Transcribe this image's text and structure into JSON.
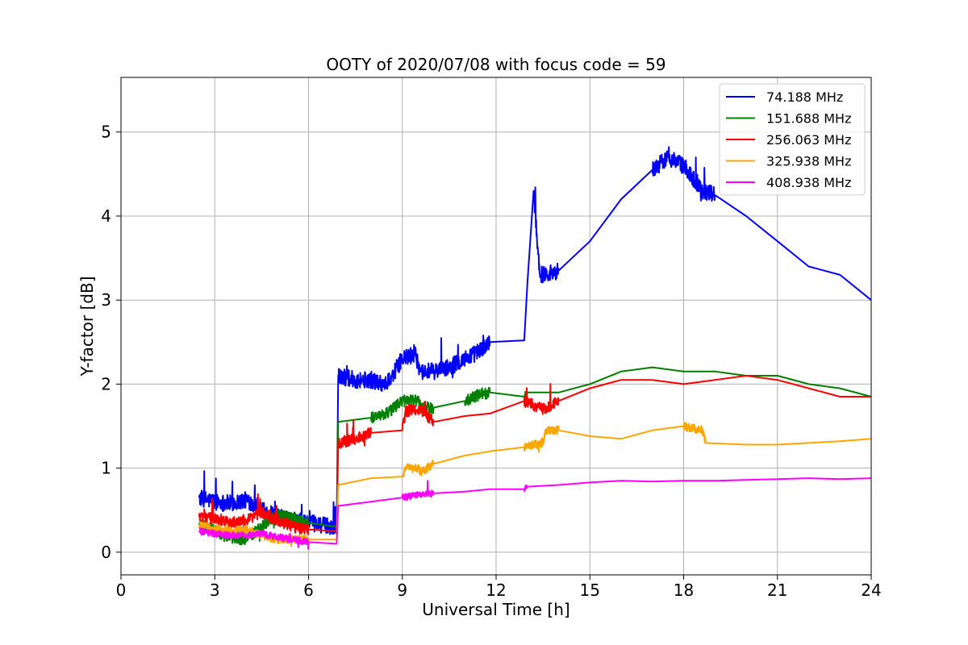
{
  "chart_data": {
    "type": "line",
    "title": "OOTY of 2020/07/08 with focus code = 59",
    "xlabel": "Universal Time [h]",
    "ylabel": "Y-factor [dB]",
    "xlim": [
      0,
      24
    ],
    "ylim": [
      -0.27,
      5.65
    ],
    "xticks": [
      0,
      3,
      6,
      9,
      12,
      15,
      18,
      21,
      24
    ],
    "yticks": [
      0,
      1,
      2,
      3,
      4,
      5
    ],
    "grid": true,
    "legend_position": "top-right",
    "series": [
      {
        "name": " 74.188 MHz",
        "color": "#0000ff",
        "noise": 0.1,
        "points": [
          [
            2.5,
            0.65
          ],
          [
            3.0,
            0.6
          ],
          [
            3.5,
            0.58
          ],
          [
            4.0,
            0.62
          ],
          [
            4.4,
            0.55
          ],
          [
            4.5,
            0.5
          ],
          [
            5.0,
            0.42
          ],
          [
            5.5,
            0.38
          ],
          [
            6.0,
            0.35
          ],
          [
            6.5,
            0.32
          ],
          [
            6.9,
            0.3
          ],
          [
            6.95,
            2.1
          ],
          [
            7.5,
            2.05
          ],
          [
            8.0,
            2.05
          ],
          [
            8.5,
            2.0
          ],
          [
            9.0,
            2.3
          ],
          [
            9.4,
            2.35
          ],
          [
            9.6,
            2.15
          ],
          [
            10.0,
            2.15
          ],
          [
            10.5,
            2.2
          ],
          [
            11.0,
            2.3
          ],
          [
            11.5,
            2.4
          ],
          [
            11.8,
            2.5
          ],
          [
            12.9,
            2.52
          ],
          [
            13.0,
            3.2
          ],
          [
            13.2,
            4.3
          ],
          [
            13.4,
            3.3
          ],
          [
            14.0,
            3.35
          ],
          [
            15.0,
            3.7
          ],
          [
            16.0,
            4.2
          ],
          [
            17.0,
            4.55
          ],
          [
            17.5,
            4.7
          ],
          [
            18.0,
            4.6
          ],
          [
            18.6,
            4.3
          ],
          [
            19.0,
            4.25
          ],
          [
            20.0,
            4.0
          ],
          [
            21.0,
            3.7
          ],
          [
            22.0,
            3.4
          ],
          [
            23.0,
            3.3
          ],
          [
            24.0,
            3.0
          ]
        ]
      },
      {
        "name": "151.688 MHz",
        "color": "#008000",
        "noise": 0.07,
        "points": [
          [
            2.5,
            0.35
          ],
          [
            3.0,
            0.25
          ],
          [
            3.5,
            0.18
          ],
          [
            4.0,
            0.15
          ],
          [
            4.5,
            0.3
          ],
          [
            5.0,
            0.45
          ],
          [
            5.5,
            0.4
          ],
          [
            6.0,
            0.35
          ],
          [
            6.9,
            0.3
          ],
          [
            6.95,
            1.55
          ],
          [
            8.0,
            1.6
          ],
          [
            8.5,
            1.65
          ],
          [
            9.0,
            1.8
          ],
          [
            9.5,
            1.8
          ],
          [
            9.6,
            1.72
          ],
          [
            10.0,
            1.72
          ],
          [
            11.0,
            1.8
          ],
          [
            11.5,
            1.88
          ],
          [
            11.8,
            1.9
          ],
          [
            12.9,
            1.85
          ],
          [
            13.0,
            1.9
          ],
          [
            14.0,
            1.9
          ],
          [
            15.0,
            2.0
          ],
          [
            16.0,
            2.15
          ],
          [
            17.0,
            2.2
          ],
          [
            18.0,
            2.15
          ],
          [
            19.0,
            2.15
          ],
          [
            20.0,
            2.1
          ],
          [
            21.0,
            2.1
          ],
          [
            22.0,
            2.0
          ],
          [
            23.0,
            1.95
          ],
          [
            24.0,
            1.85
          ]
        ]
      },
      {
        "name": "256.063 MHz",
        "color": "#ff0000",
        "noise": 0.07,
        "points": [
          [
            2.5,
            0.42
          ],
          [
            3.0,
            0.4
          ],
          [
            3.5,
            0.35
          ],
          [
            4.0,
            0.38
          ],
          [
            4.5,
            0.48
          ],
          [
            5.0,
            0.38
          ],
          [
            5.5,
            0.3
          ],
          [
            6.0,
            0.27
          ],
          [
            6.9,
            0.25
          ],
          [
            6.95,
            1.3
          ],
          [
            7.5,
            1.35
          ],
          [
            8.0,
            1.42
          ],
          [
            9.0,
            1.45
          ],
          [
            9.1,
            1.68
          ],
          [
            9.6,
            1.7
          ],
          [
            10.0,
            1.55
          ],
          [
            11.0,
            1.62
          ],
          [
            11.8,
            1.65
          ],
          [
            12.9,
            1.8
          ],
          [
            13.5,
            1.7
          ],
          [
            14.0,
            1.8
          ],
          [
            15.0,
            1.95
          ],
          [
            16.0,
            2.05
          ],
          [
            17.0,
            2.05
          ],
          [
            18.0,
            2.0
          ],
          [
            19.0,
            2.05
          ],
          [
            20.0,
            2.1
          ],
          [
            21.0,
            2.05
          ],
          [
            22.0,
            1.95
          ],
          [
            23.0,
            1.85
          ],
          [
            24.0,
            1.85
          ]
        ]
      },
      {
        "name": "325.938 MHz",
        "color": "#ffa500",
        "noise": 0.05,
        "points": [
          [
            2.5,
            0.32
          ],
          [
            3.0,
            0.28
          ],
          [
            3.5,
            0.25
          ],
          [
            4.0,
            0.27
          ],
          [
            4.5,
            0.2
          ],
          [
            5.0,
            0.15
          ],
          [
            5.5,
            0.15
          ],
          [
            6.0,
            0.15
          ],
          [
            6.9,
            0.15
          ],
          [
            6.95,
            0.8
          ],
          [
            8.0,
            0.88
          ],
          [
            9.0,
            0.9
          ],
          [
            9.1,
            1.0
          ],
          [
            9.5,
            1.0
          ],
          [
            9.6,
            0.95
          ],
          [
            10.0,
            1.05
          ],
          [
            11.0,
            1.15
          ],
          [
            11.8,
            1.2
          ],
          [
            12.9,
            1.25
          ],
          [
            13.5,
            1.3
          ],
          [
            13.6,
            1.45
          ],
          [
            14.0,
            1.45
          ],
          [
            15.0,
            1.38
          ],
          [
            16.0,
            1.35
          ],
          [
            17.0,
            1.45
          ],
          [
            18.0,
            1.5
          ],
          [
            18.6,
            1.45
          ],
          [
            18.7,
            1.3
          ],
          [
            20.0,
            1.28
          ],
          [
            21.0,
            1.28
          ],
          [
            22.0,
            1.3
          ],
          [
            23.0,
            1.32
          ],
          [
            24.0,
            1.35
          ]
        ]
      },
      {
        "name": "408.938 MHz",
        "color": "#ff00ff",
        "noise": 0.04,
        "points": [
          [
            2.5,
            0.25
          ],
          [
            3.0,
            0.22
          ],
          [
            3.5,
            0.2
          ],
          [
            4.0,
            0.2
          ],
          [
            4.5,
            0.22
          ],
          [
            5.0,
            0.18
          ],
          [
            5.5,
            0.15
          ],
          [
            6.0,
            0.12
          ],
          [
            6.9,
            0.1
          ],
          [
            6.95,
            0.55
          ],
          [
            8.0,
            0.6
          ],
          [
            9.0,
            0.65
          ],
          [
            9.5,
            0.68
          ],
          [
            10.0,
            0.7
          ],
          [
            11.0,
            0.72
          ],
          [
            11.8,
            0.75
          ],
          [
            12.9,
            0.75
          ],
          [
            13.0,
            0.78
          ],
          [
            14.0,
            0.8
          ],
          [
            15.0,
            0.83
          ],
          [
            16.0,
            0.85
          ],
          [
            17.0,
            0.84
          ],
          [
            18.0,
            0.85
          ],
          [
            19.0,
            0.85
          ],
          [
            20.0,
            0.86
          ],
          [
            21.0,
            0.87
          ],
          [
            22.0,
            0.88
          ],
          [
            23.0,
            0.87
          ],
          [
            24.0,
            0.88
          ]
        ]
      }
    ]
  }
}
